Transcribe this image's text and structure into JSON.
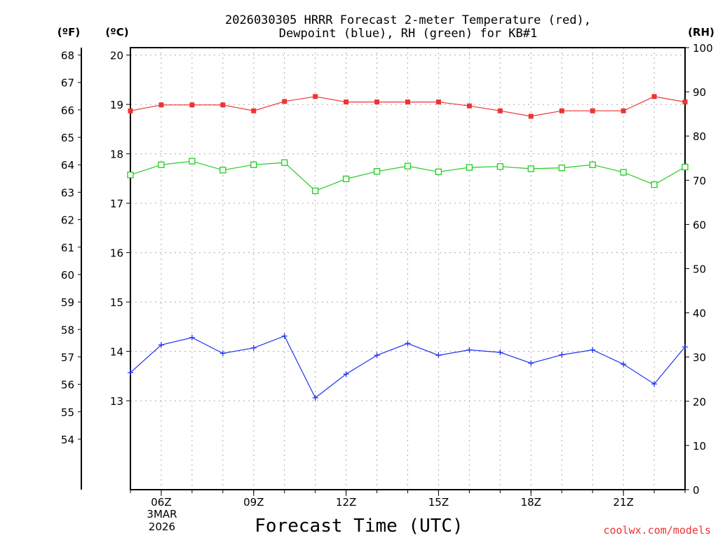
{
  "chart_data": {
    "type": "line",
    "title": "2026030305 HRRR Forecast 2-meter Temperature (red),",
    "subtitle": "Dewpoint (blue), RH (green) for KB#1",
    "xlabel": "Forecast Time (UTC)",
    "left_unit_label": "(ºF)",
    "mid_unit_label": "(ºC)",
    "right_unit_label": "(RH)",
    "date_line1": "3MAR",
    "date_line2": "2026",
    "credit": "coolwx.com/models",
    "x_hours": [
      5,
      6,
      7,
      8,
      9,
      10,
      11,
      12,
      13,
      14,
      15,
      16,
      17,
      18,
      19,
      20,
      21,
      22,
      23
    ],
    "x_range": [
      5,
      23
    ],
    "x_ticks": [
      {
        "hour": 6,
        "label": "06Z"
      },
      {
        "hour": 9,
        "label": "09Z"
      },
      {
        "hour": 12,
        "label": "12Z"
      },
      {
        "hour": 15,
        "label": "15Z"
      },
      {
        "hour": 18,
        "label": "18Z"
      },
      {
        "hour": 21,
        "label": "21Z"
      }
    ],
    "celsius_range": [
      11.2,
      20.15
    ],
    "celsius_ticks": [
      "13",
      "14",
      "15",
      "16",
      "17",
      "18",
      "19",
      "20"
    ],
    "fahrenheit_ticks": [
      "54",
      "55",
      "56",
      "57",
      "58",
      "59",
      "60",
      "61",
      "62",
      "63",
      "64",
      "65",
      "66",
      "67",
      "68"
    ],
    "rh_range": [
      0,
      100
    ],
    "rh_ticks": [
      "0",
      "10",
      "20",
      "30",
      "40",
      "50",
      "60",
      "70",
      "80",
      "90",
      "100"
    ],
    "grid": true,
    "series": [
      {
        "name": "Temperature",
        "axis": "celsius",
        "color": "#ee3333",
        "marker": "filled-square",
        "values": [
          18.87,
          18.99,
          18.99,
          18.99,
          18.87,
          19.06,
          19.16,
          19.05,
          19.05,
          19.05,
          19.05,
          18.97,
          18.87,
          18.76,
          18.87,
          18.87,
          18.87,
          19.16,
          19.05
        ]
      },
      {
        "name": "Dewpoint",
        "axis": "celsius",
        "color": "#2233ee",
        "marker": "plus",
        "values": [
          13.57,
          14.13,
          14.28,
          13.96,
          14.07,
          14.31,
          13.06,
          13.54,
          13.92,
          14.16,
          13.92,
          14.03,
          13.98,
          13.76,
          13.93,
          14.03,
          13.74,
          13.34,
          14.09
        ]
      },
      {
        "name": "RH",
        "axis": "rh",
        "color": "#22cc22",
        "marker": "open-square",
        "values": [
          71.2,
          73.5,
          74.3,
          72.3,
          73.5,
          74.0,
          67.6,
          70.3,
          72.0,
          73.2,
          71.9,
          72.9,
          73.1,
          72.6,
          72.8,
          73.5,
          71.8,
          69.0,
          73.0
        ]
      }
    ]
  }
}
